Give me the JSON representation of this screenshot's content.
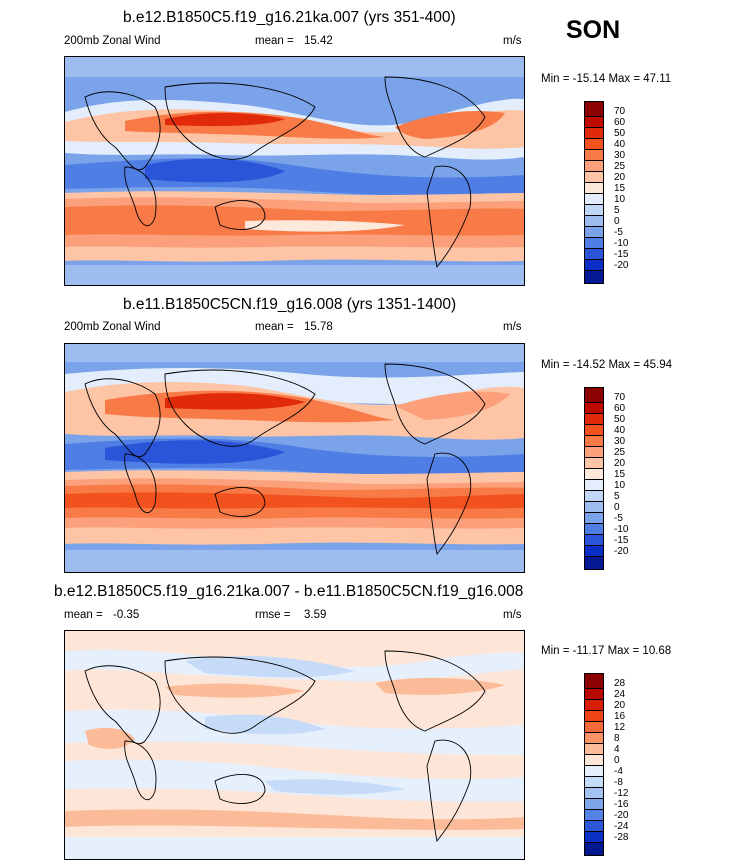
{
  "season": "SON",
  "panels": [
    {
      "id": "p1",
      "title": "b.e12.B1850C5.f19_g16.21ka.007 (yrs 351-400)",
      "variable": "200mb Zonal Wind",
      "stat1_label": "mean =",
      "stat1_value": "15.42",
      "stat2_label": "",
      "stat2_value": "",
      "units": "m/s",
      "min_max": "Min = -15.14 Max = 47.11",
      "levels": [
        "70",
        "60",
        "50",
        "40",
        "30",
        "25",
        "20",
        "15",
        "10",
        "5",
        "0",
        "-5",
        "-10",
        "-15",
        "-20"
      ],
      "colors": [
        "#8b0000",
        "#c00a00",
        "#e02a0a",
        "#f2531e",
        "#f77a47",
        "#fba07a",
        "#fdc4a6",
        "#fde9dc",
        "#e3edfb",
        "#c2d7f6",
        "#9dbdf0",
        "#7aa3ea",
        "#4f7fe4",
        "#2b55d8",
        "#0a2ec6",
        "#031a94"
      ]
    },
    {
      "id": "p2",
      "title": "b.e11.B1850C5CN.f19_g16.008 (yrs 1351-1400)",
      "variable": "200mb Zonal Wind",
      "stat1_label": "mean =",
      "stat1_value": "15.78",
      "stat2_label": "",
      "stat2_value": "",
      "units": "m/s",
      "min_max": "Min = -14.52 Max = 45.94",
      "levels": [
        "70",
        "60",
        "50",
        "40",
        "30",
        "25",
        "20",
        "15",
        "10",
        "5",
        "0",
        "-5",
        "-10",
        "-15",
        "-20"
      ],
      "colors": [
        "#8b0000",
        "#c00a00",
        "#e02a0a",
        "#f2531e",
        "#f77a47",
        "#fba07a",
        "#fdc4a6",
        "#fde9dc",
        "#e3edfb",
        "#c2d7f6",
        "#9dbdf0",
        "#7aa3ea",
        "#4f7fe4",
        "#2b55d8",
        "#0a2ec6",
        "#031a94"
      ]
    },
    {
      "id": "p3",
      "title": "b.e12.B1850C5.f19_g16.21ka.007 - b.e11.B1850C5CN.f19_g16.008",
      "variable": "",
      "stat1_label": "mean =",
      "stat1_value": "-0.35",
      "stat2_label": "rmse =",
      "stat2_value": "3.59",
      "units": "m/s",
      "min_max": "Min = -11.17 Max = 10.68",
      "levels": [
        "28",
        "24",
        "20",
        "16",
        "12",
        "8",
        "4",
        "0",
        "-4",
        "-8",
        "-12",
        "-16",
        "-20",
        "-24",
        "-28"
      ],
      "colors": [
        "#8b0000",
        "#b80800",
        "#d81e06",
        "#ee4416",
        "#f56a3b",
        "#f99466",
        "#fbbb98",
        "#fde6d8",
        "#e6effc",
        "#c6dbf7",
        "#a3c2f1",
        "#7ea7eb",
        "#5484e5",
        "#2d58d8",
        "#0b30c5",
        "#02188f"
      ]
    }
  ]
}
